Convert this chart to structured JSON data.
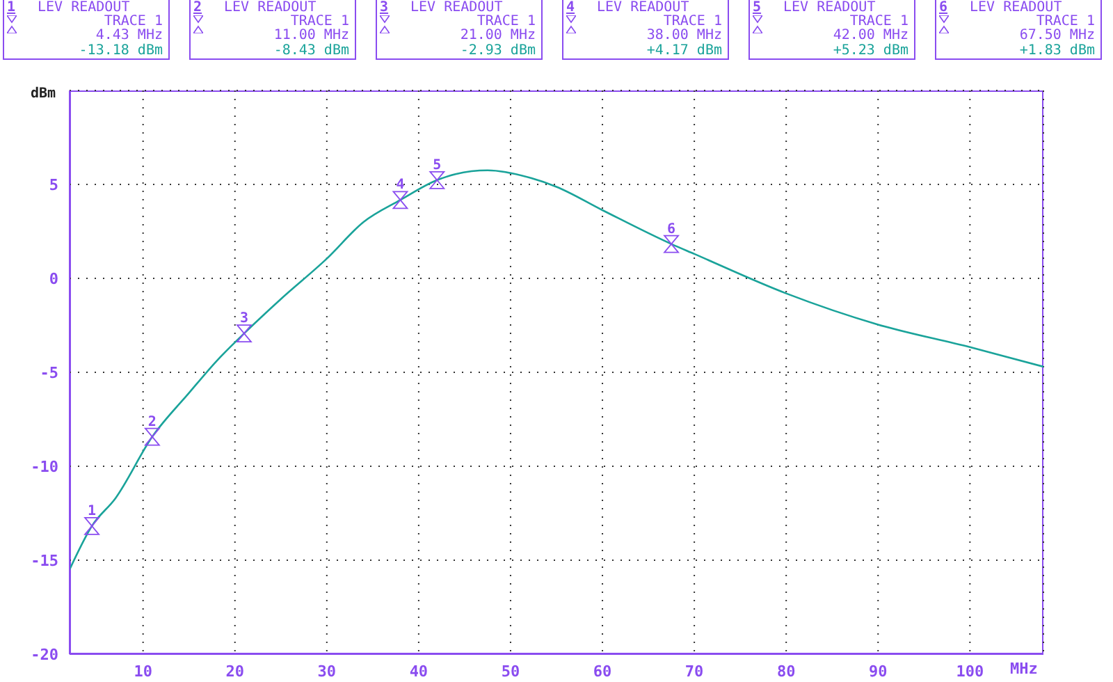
{
  "chart_data": {
    "type": "line",
    "xlabel": "MHz",
    "ylabel": "dBm",
    "x": [
      2,
      4.43,
      7,
      11,
      15,
      18,
      21,
      25,
      30,
      34,
      38,
      42,
      44,
      47.5,
      52,
      55,
      60,
      67.5,
      70,
      80,
      90,
      100,
      108
    ],
    "series": [
      {
        "color": "#1aa39a",
        "values": [
          -15.5,
          -13.18,
          -11.7,
          -8.43,
          -6.1,
          -4.4,
          -2.93,
          -1.1,
          1.05,
          3.0,
          4.17,
          5.23,
          5.55,
          5.75,
          5.37,
          4.87,
          3.63,
          1.83,
          1.3,
          -0.8,
          -2.46,
          -3.66,
          -4.7
        ]
      }
    ],
    "xlim": [
      2,
      108
    ],
    "ylim": [
      -20,
      10
    ],
    "xticks": [
      10,
      20,
      30,
      40,
      50,
      60,
      70,
      80,
      90,
      100
    ],
    "yticks": [
      -20,
      -15,
      -10,
      -5,
      0,
      5
    ],
    "grid": true,
    "marker": "none",
    "line_style": "solid",
    "annotations": [
      {
        "text": "1",
        "x": 4.43,
        "y": -13.18
      },
      {
        "text": "2",
        "x": 11,
        "y": -8.43
      },
      {
        "text": "3",
        "x": 21,
        "y": -2.93
      },
      {
        "text": "4",
        "x": 38,
        "y": 4.17
      },
      {
        "text": "5",
        "x": 42,
        "y": 5.23
      },
      {
        "text": "6",
        "x": 67.5,
        "y": 1.83
      },
      "LEV READOUT",
      "TRACE 1",
      "4.43 MHz",
      "-13.18 dBm",
      "LEV READOUT",
      "TRACE 1",
      "11.00 MHz",
      "-8.43 dBm",
      "LEV READOUT",
      "TRACE 1",
      "21.00 MHz",
      "-2.93 dBm",
      "LEV READOUT",
      "TRACE 1",
      "38.00 MHz",
      "+4.17 dBm",
      "LEV READOUT",
      "TRACE 1",
      "42.00 MHz",
      "+5.23 dBm",
      "LEV READOUT",
      "TRACE 1",
      "67.50 MHz",
      "+1.83 dBm"
    ]
  }
}
